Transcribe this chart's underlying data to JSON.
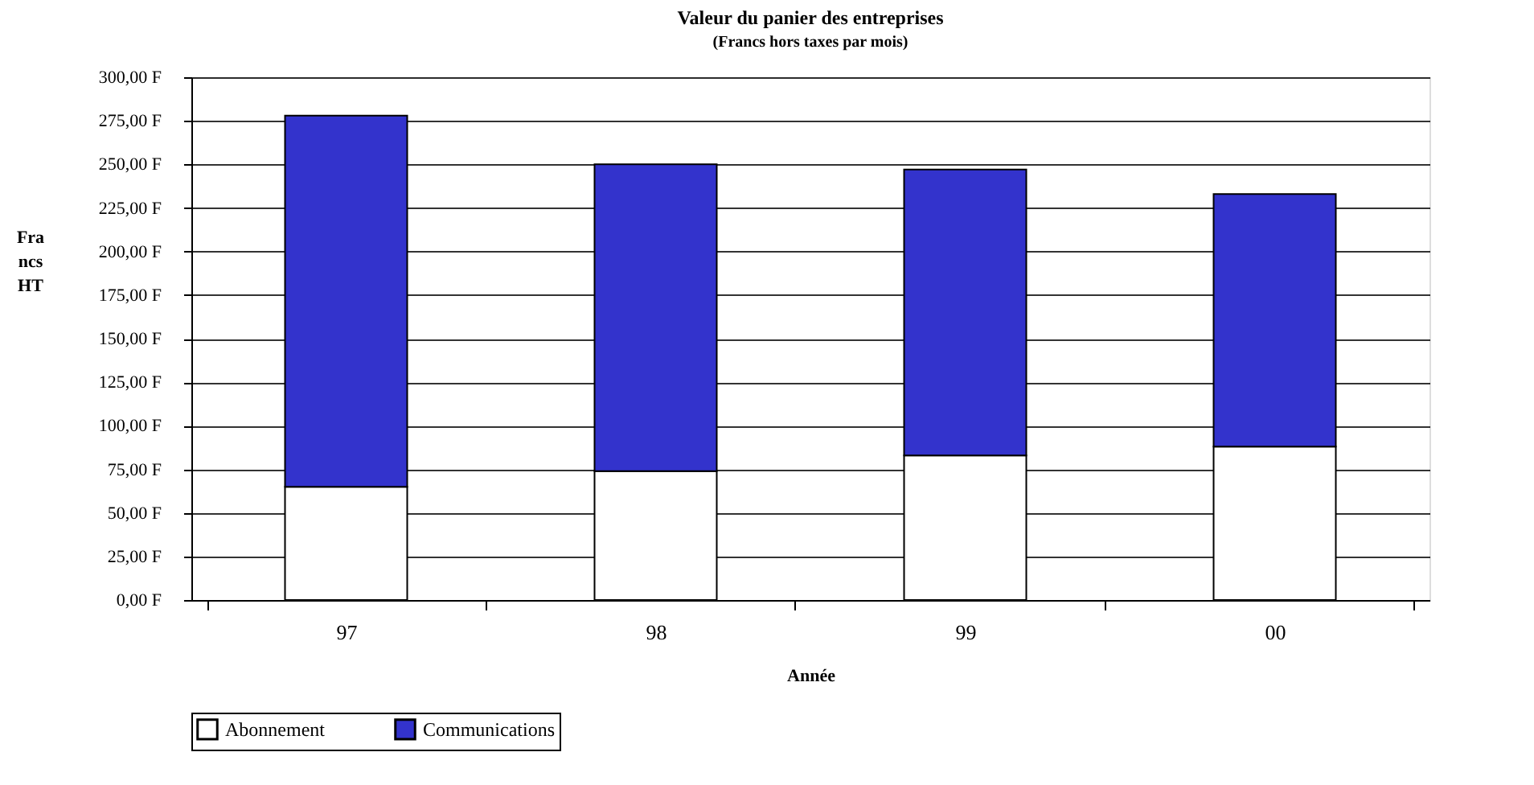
{
  "chart_data": {
    "type": "bar",
    "title": "Valeur du panier des entreprises",
    "subtitle": "(Francs hors taxes par mois)",
    "xlabel": "Année",
    "ylabel": "Francs HT",
    "categories": [
      "97",
      "98",
      "99",
      "00"
    ],
    "stacked": true,
    "series": [
      {
        "name": "Abonnement",
        "color": "#ffffff",
        "values": [
          65,
          74,
          83,
          88
        ]
      },
      {
        "name": "Communications",
        "color": "#3333cc",
        "values": [
          213,
          176,
          164,
          145
        ]
      }
    ],
    "ylim": [
      0,
      300
    ],
    "yticks": [
      {
        "value": 0,
        "label": "0,00 F"
      },
      {
        "value": 25,
        "label": "25,00 F"
      },
      {
        "value": 50,
        "label": "50,00 F"
      },
      {
        "value": 75,
        "label": "75,00 F"
      },
      {
        "value": 100,
        "label": "100,00 F"
      },
      {
        "value": 125,
        "label": "125,00 F"
      },
      {
        "value": 150,
        "label": "150,00 F"
      },
      {
        "value": 175,
        "label": "175,00 F"
      },
      {
        "value": 200,
        "label": "200,00 F"
      },
      {
        "value": 225,
        "label": "225,00 F"
      },
      {
        "value": 250,
        "label": "250,00 F"
      },
      {
        "value": 275,
        "label": "275,00 F"
      },
      {
        "value": 300,
        "label": "300,00 F"
      }
    ],
    "grid": "y",
    "legend": "bottom"
  }
}
